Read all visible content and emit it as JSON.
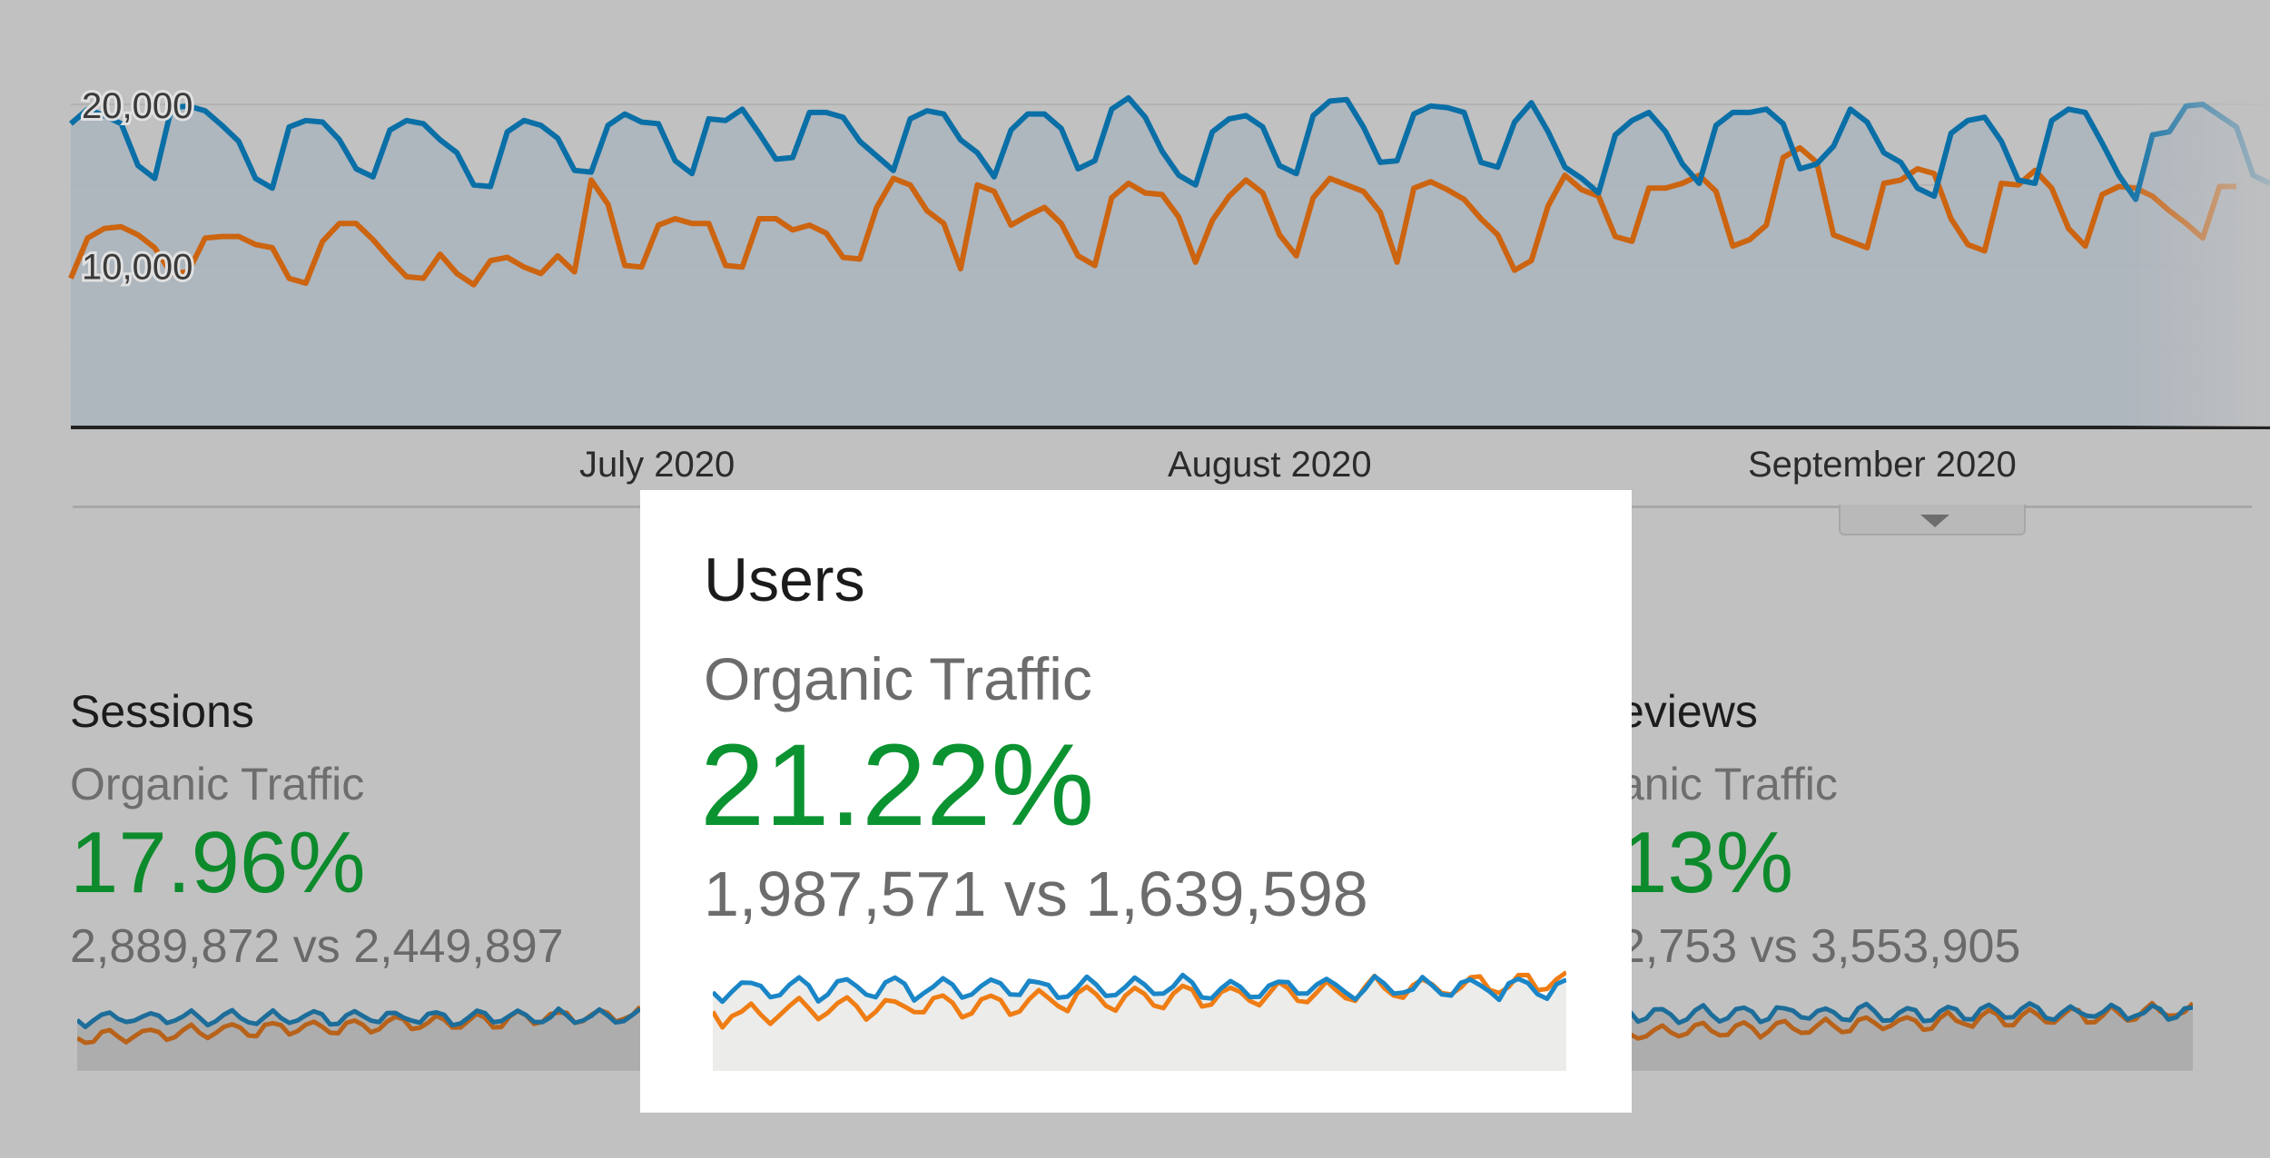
{
  "main_chart": {
    "y_tick_labels": [
      "20,000",
      "10,000"
    ],
    "months": [
      "July 2020",
      "August 2020",
      "September 2020"
    ],
    "colors": {
      "current": "#0a6fa6",
      "previous": "#cc6410",
      "area": "#aab4bd"
    }
  },
  "chart_data": {
    "type": "line",
    "title": "",
    "xlabel": "",
    "ylabel": "",
    "x_labels": [
      "July 2020",
      "August 2020",
      "September 2020"
    ],
    "ylim": [
      0,
      22000
    ],
    "yticks": [
      10000,
      20000
    ],
    "series": [
      {
        "color": "#0a6fa6",
        "values": [
          18800,
          19700,
          19300,
          18800,
          16200,
          15400,
          19800,
          19900,
          19600,
          18700,
          17700,
          15400,
          14800,
          18600,
          19000,
          18900,
          17800,
          16000,
          15500,
          18400,
          19000,
          18800,
          17800,
          17000,
          15000,
          14900,
          18300,
          19000,
          18700,
          17900,
          15900,
          15800,
          18700,
          19400,
          18900,
          18800,
          16500,
          15700,
          19100,
          19000,
          19700,
          18200,
          16600,
          16700,
          19500,
          19500,
          19200,
          17700,
          16800,
          15900,
          19100,
          19600,
          19400,
          17800,
          17000,
          15500,
          18400,
          19400,
          19400,
          18500,
          16000,
          16500,
          19700,
          20400,
          19200,
          17100,
          15600,
          15000,
          18300,
          19100,
          19300,
          18600,
          16200,
          15700,
          19300,
          20200,
          20300,
          18600,
          16400,
          16500,
          19400,
          19900,
          19800,
          19500,
          16400,
          16100,
          18900,
          20100,
          18300,
          16100,
          15400,
          14500,
          18100,
          19000,
          19500,
          18300,
          16300,
          15100,
          18700,
          19500,
          19500,
          19700,
          18800,
          16000,
          16300,
          17400,
          19700,
          18900,
          17000,
          16400,
          14800,
          14300,
          18200,
          19000,
          19200,
          17700,
          15300,
          15100,
          19000,
          19700,
          19500,
          17600,
          15600,
          14100,
          18100,
          18300,
          19900,
          20000,
          19300,
          18600,
          15600,
          15100
        ]
      },
      {
        "color": "#cc6410",
        "values": [
          9200,
          11700,
          12300,
          12400,
          11900,
          11100,
          9500,
          9600,
          11700,
          11800,
          11800,
          11300,
          11100,
          9200,
          8900,
          11500,
          12600,
          12600,
          11600,
          10400,
          9300,
          9200,
          10700,
          9500,
          8800,
          10300,
          10500,
          9900,
          9500,
          10600,
          9600,
          15300,
          13800,
          10000,
          9900,
          12500,
          12900,
          12600,
          12600,
          10000,
          9900,
          12900,
          12900,
          12200,
          12500,
          12000,
          10500,
          10400,
          13600,
          15400,
          15000,
          13400,
          12600,
          9800,
          15000,
          14600,
          12500,
          13100,
          13600,
          12600,
          10600,
          10000,
          14200,
          15100,
          14500,
          14400,
          13000,
          10200,
          12800,
          14300,
          15300,
          14500,
          11900,
          10600,
          14200,
          15400,
          15000,
          14600,
          13300,
          10200,
          14800,
          15200,
          14700,
          14100,
          12900,
          11900,
          9700,
          10300,
          13700,
          15600,
          14700,
          14300,
          11800,
          11500,
          14800,
          14800,
          15100,
          15600,
          14600,
          11200,
          11600,
          12500,
          16700,
          17300,
          16400,
          11900,
          11500,
          11100,
          15100,
          15300,
          16000,
          15700,
          12900,
          11300,
          10900,
          15100,
          15000,
          15900,
          14800,
          12300,
          11200,
          14400,
          14900,
          14800,
          14300,
          13400,
          12600,
          11700,
          14900,
          14900
        ]
      }
    ]
  },
  "cards": {
    "sessions": {
      "title": "Sessions",
      "segment": "Organic Traffic",
      "change": "17.96%",
      "comparison": "2,889,872 vs 2,449,897"
    },
    "users": {
      "title": "Users",
      "segment": "Organic Traffic",
      "change": "21.22%",
      "comparison": "1,987,571 vs 1,639,598"
    },
    "pageviews": {
      "title_visible": "eviews",
      "segment_visible": "anic Traffic",
      "change_visible": "13%",
      "comparison_visible": "2,753 vs 3,553,905"
    }
  },
  "spark_colors": {
    "blue": "#1a86c7",
    "orange": "#ef7d14",
    "fill": "#ececea",
    "bg_fill": "#adadad"
  }
}
